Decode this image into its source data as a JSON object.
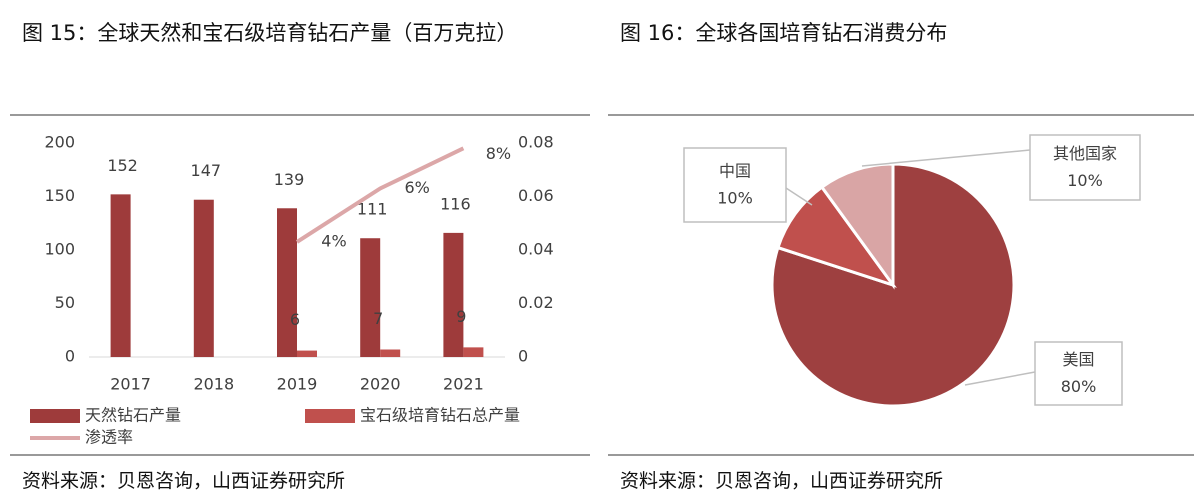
{
  "chart_data": [
    {
      "type": "bar",
      "title": "图 15：全球天然和宝石级培育钻石产量（百万克拉）",
      "source": "资料来源：贝恩咨询，山西证券研究所",
      "categories": [
        "2017",
        "2018",
        "2019",
        "2020",
        "2021"
      ],
      "series": [
        {
          "name": "天然钻石产量",
          "color": "#9e3b3b",
          "values": [
            152,
            147,
            139,
            111,
            116
          ]
        },
        {
          "name": "宝石级培育钻石总产量",
          "color": "#c0504d",
          "values": [
            null,
            null,
            6,
            7,
            9
          ]
        },
        {
          "name": "渗透率",
          "type": "line",
          "axis": "y2",
          "color": "#dca7a8",
          "values": [
            null,
            null,
            0.043,
            0.063,
            0.078
          ],
          "value_labels": [
            null,
            null,
            "4%",
            "6%",
            "8%"
          ]
        }
      ],
      "ylim": [
        0,
        200
      ],
      "yticks": [
        0,
        50,
        100,
        150,
        200
      ],
      "y2lim": [
        0,
        0.08
      ],
      "y2ticks": [
        0,
        0.02,
        0.04,
        0.06,
        0.08
      ]
    },
    {
      "type": "pie",
      "title": "图 16：全球各国培育钻石消费分布",
      "source": "资料来源：贝恩咨询，山西证券研究所",
      "categories": [
        "美国",
        "中国",
        "其他国家"
      ],
      "values": [
        80,
        10,
        10
      ],
      "value_labels": [
        "80%",
        "10%",
        "10%"
      ],
      "colors": [
        "#9e4040",
        "#c0504d",
        "#d9a5a5"
      ]
    }
  ]
}
